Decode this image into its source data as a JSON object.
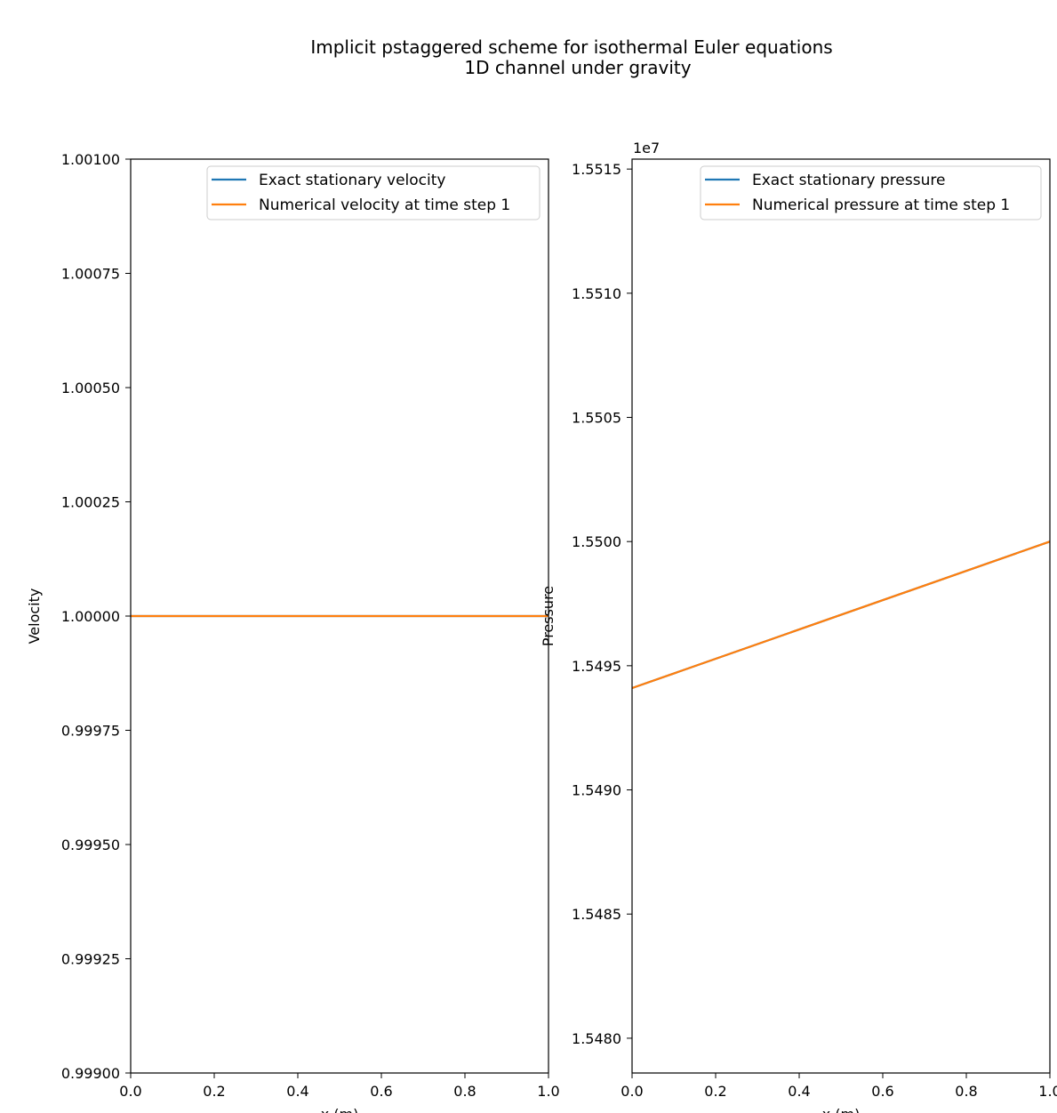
{
  "figure": {
    "title_line1": "Implicit pstaggered scheme for isothermal Euler equations",
    "title_line2": "1D channel under gravity"
  },
  "chart_data": [
    {
      "type": "line",
      "xlabel": "x (m)",
      "ylabel": "Velocity",
      "xlim": [
        0.0,
        1.0
      ],
      "ylim": [
        0.999,
        1.001
      ],
      "xticks": [
        "0.0",
        "0.2",
        "0.4",
        "0.6",
        "0.8",
        "1.0"
      ],
      "yticks": [
        "0.99900",
        "0.99925",
        "0.99950",
        "0.99975",
        "1.00000",
        "1.00025",
        "1.00050",
        "1.00075",
        "1.00100"
      ],
      "offset_label": "",
      "grid": false,
      "legend": "upper-right",
      "series": [
        {
          "name": "Exact stationary velocity",
          "color": "#1f77b4",
          "x": [
            0.0,
            1.0
          ],
          "y": [
            1.0,
            1.0
          ]
        },
        {
          "name": "Numerical velocity at time step 1",
          "color": "#ff7f0e",
          "x": [
            0.0,
            1.0
          ],
          "y": [
            1.0,
            1.0
          ]
        }
      ]
    },
    {
      "type": "line",
      "xlabel": "x (m)",
      "ylabel": "Pressure",
      "xlim": [
        0.0,
        1.0
      ],
      "ylim": [
        15478600,
        15515400
      ],
      "xticks": [
        "0.0",
        "0.2",
        "0.4",
        "0.6",
        "0.8",
        "1.0"
      ],
      "yticks": [
        "1.5480",
        "1.5485",
        "1.5490",
        "1.5495",
        "1.5500",
        "1.5505",
        "1.5510",
        "1.5515"
      ],
      "offset_label": "1e7",
      "grid": false,
      "legend": "upper-right",
      "series": [
        {
          "name": "Exact stationary pressure",
          "color": "#1f77b4",
          "x": [
            0.0,
            1.0
          ],
          "y": [
            15494100,
            15500000
          ]
        },
        {
          "name": "Numerical pressure at time step 1",
          "color": "#ff7f0e",
          "x": [
            0.0,
            1.0
          ],
          "y": [
            15494100,
            15500000
          ]
        }
      ]
    }
  ]
}
